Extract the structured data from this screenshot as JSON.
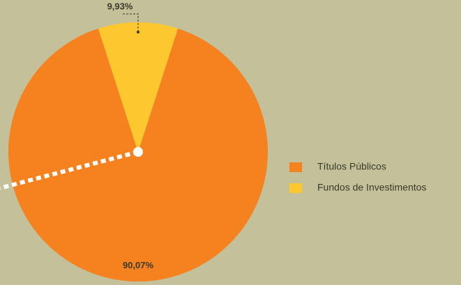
{
  "chart_data": {
    "type": "pie",
    "categories": [
      "Títulos Públicos",
      "Fundos de Investimentos"
    ],
    "values": [
      90.07,
      9.93
    ],
    "value_labels": [
      "90,07%",
      "9,93%"
    ],
    "colors": [
      "#f5821f",
      "#fdc82f"
    ],
    "legend": "right"
  }
}
